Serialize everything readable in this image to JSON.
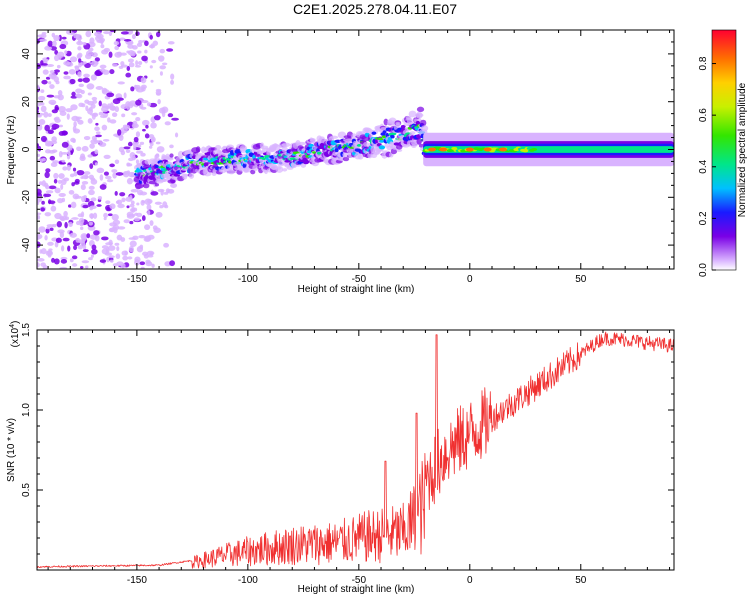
{
  "title": "C2E1.2025.278.04.11.E07",
  "chart_data": [
    {
      "type": "heatmap",
      "name": "spectrogram",
      "xlabel": "Height of straight line (km)",
      "ylabel": "Frequency (Hz)",
      "xlim": [
        -195,
        92
      ],
      "ylim": [
        -50,
        50
      ],
      "xticks": [
        -150,
        -100,
        -50,
        0,
        50
      ],
      "xtick_labels": [
        "-150",
        "-100",
        "-50",
        "0",
        "50"
      ],
      "yticks": [
        -40,
        -20,
        0,
        20,
        40
      ],
      "ytick_labels": [
        "-40",
        "-20",
        "0",
        "20",
        "40"
      ],
      "colorbar": {
        "label": "Normalized spectral amplitude",
        "range": [
          0,
          0.93
        ],
        "ticks": [
          0,
          0.2,
          0.4,
          0.6,
          0.8
        ],
        "tick_labels": [
          "0.0",
          "0.2",
          "0.4",
          "0.6",
          "0.8"
        ]
      },
      "features": {
        "noise_region_x": [
          -195,
          -130
        ],
        "signal_band_centers": [
          {
            "x": -145,
            "f": -10
          },
          {
            "x": -120,
            "f": -5
          },
          {
            "x": -80,
            "f": -3
          },
          {
            "x": -50,
            "f": 2
          },
          {
            "x": -30,
            "f": 6
          },
          {
            "x": -22,
            "f": 10
          },
          {
            "x": -20,
            "f": 0
          },
          {
            "x": 90,
            "f": 0
          }
        ],
        "hotspots_x": [
          -17,
          -12,
          0,
          8,
          15
        ]
      }
    },
    {
      "type": "line",
      "name": "snr",
      "xlabel": "Height of straight line (km)",
      "ylabel": "SNR (10 * v/v)",
      "scale_label_base": "(x10",
      "scale_label_exp": "4",
      "scale_label_close": ")",
      "xlim": [
        -195,
        92
      ],
      "ylim": [
        0,
        1.5
      ],
      "xticks": [
        -150,
        -100,
        -50,
        0,
        50
      ],
      "xtick_labels": [
        "-150",
        "-100",
        "-50",
        "0",
        "50"
      ],
      "yticks": [
        0.5,
        1.0,
        1.5
      ],
      "ytick_labels": [
        "0.5",
        "1.0",
        "1.5"
      ],
      "line_color": "#f03030",
      "envelope": {
        "x": [
          -195,
          -140,
          -125,
          -110,
          -100,
          -80,
          -60,
          -45,
          -30,
          -25,
          -20,
          -15,
          -10,
          0,
          10,
          20,
          30,
          40,
          50,
          60,
          70,
          80,
          92
        ],
        "y": [
          0.02,
          0.03,
          0.06,
          0.12,
          0.15,
          0.2,
          0.22,
          0.27,
          0.3,
          0.4,
          0.55,
          0.65,
          0.75,
          0.85,
          0.95,
          1.05,
          1.15,
          1.25,
          1.35,
          1.45,
          1.44,
          1.42,
          1.4
        ]
      },
      "spikes": [
        {
          "x": -15,
          "y": 1.47
        },
        {
          "x": -24,
          "y": 0.98
        },
        {
          "x": -38,
          "y": 0.68
        }
      ]
    }
  ]
}
